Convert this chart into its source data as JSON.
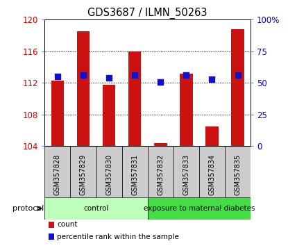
{
  "title": "GDS3687 / ILMN_50263",
  "samples": [
    "GSM357828",
    "GSM357829",
    "GSM357830",
    "GSM357831",
    "GSM357832",
    "GSM357833",
    "GSM357834",
    "GSM357835"
  ],
  "count_values": [
    112.3,
    118.5,
    111.8,
    116.0,
    104.4,
    113.2,
    106.5,
    118.8
  ],
  "percentile_values": [
    55,
    56,
    54,
    56,
    51,
    56,
    53,
    56
  ],
  "ylim_left": [
    104,
    120
  ],
  "ylim_right": [
    0,
    100
  ],
  "yticks_left": [
    104,
    108,
    112,
    116,
    120
  ],
  "yticks_right": [
    0,
    25,
    50,
    75,
    100
  ],
  "yticklabels_right": [
    "0",
    "25",
    "50",
    "75",
    "100%"
  ],
  "bar_color": "#cc1111",
  "dot_color": "#1111cc",
  "bg_color": "#ffffff",
  "sample_bg_color": "#cccccc",
  "protocol_groups": [
    {
      "label": "control",
      "color": "#bbffbb",
      "start": 0,
      "end": 3
    },
    {
      "label": "exposure to maternal diabetes",
      "color": "#44dd44",
      "start": 4,
      "end": 7
    }
  ],
  "protocol_label": "protocol",
  "legend_items": [
    {
      "color": "#cc1111",
      "label": "count"
    },
    {
      "color": "#1111cc",
      "label": "percentile rank within the sample"
    }
  ],
  "tick_label_color_left": "#cc0000",
  "tick_label_color_right": "#0000cc",
  "bar_base": 104,
  "dot_size": 35,
  "bar_width": 0.5
}
